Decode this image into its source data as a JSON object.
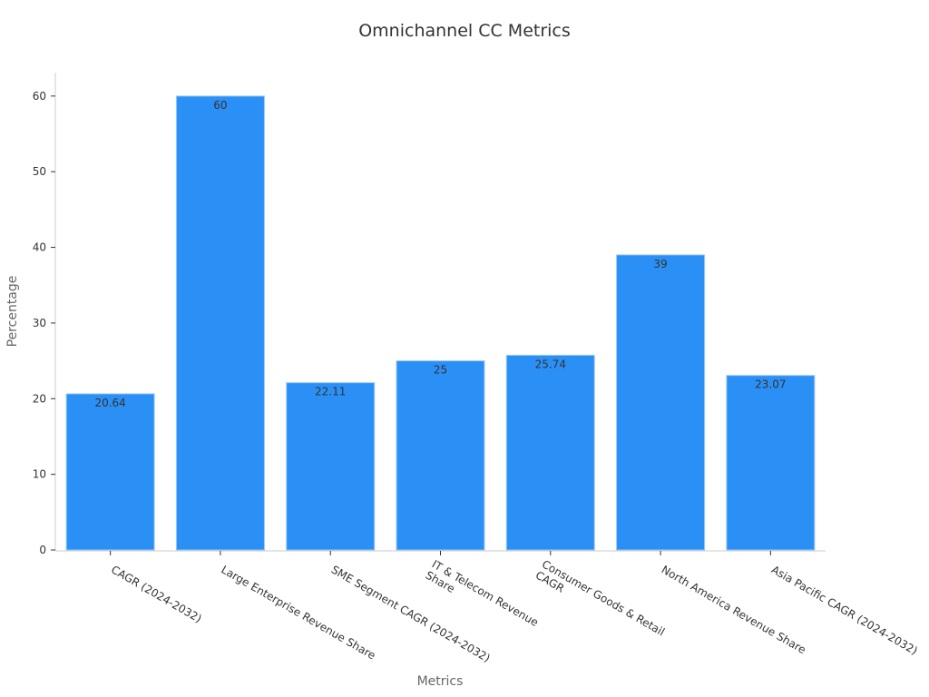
{
  "chart_data": {
    "type": "bar",
    "title": "Omnichannel CC Metrics",
    "x_label": "Metrics",
    "y_label": "Percentage",
    "categories": [
      "CAGR (2024-2032)",
      "Large Enterprise Revenue Share",
      "SME Segment CAGR (2024-2032)",
      "IT & Telecom Revenue\nShare",
      "Consumer Goods & Retail\nCAGR",
      "North America Revenue Share",
      "Asia Pacific CAGR (2024-2032)"
    ],
    "values": [
      20.64,
      60,
      22.11,
      25,
      25.74,
      39,
      23.07
    ],
    "color": "#2b90f5",
    "ylim": [
      0,
      63.1
    ],
    "yticks": [
      0,
      10,
      20,
      30,
      40,
      50,
      60
    ],
    "grid": false
  }
}
